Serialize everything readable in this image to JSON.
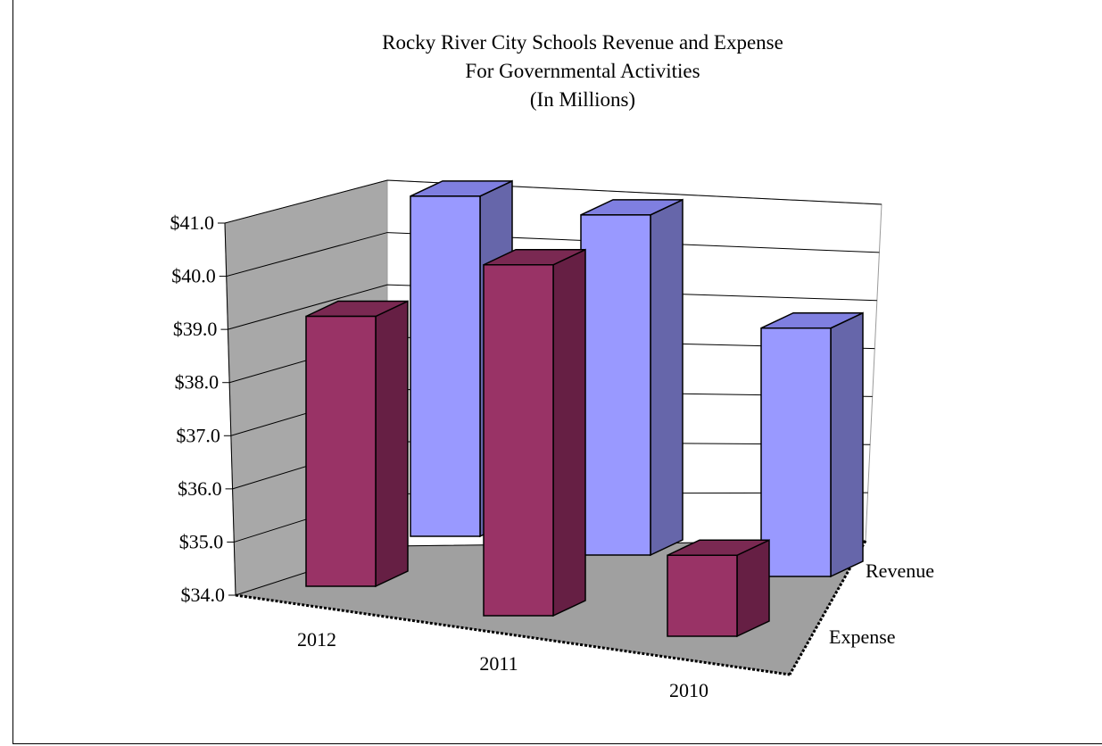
{
  "chart_data": {
    "type": "bar",
    "title_lines": [
      "Rocky River City Schools Revenue and Expense",
      "For Governmental Activities",
      "(In Millions)"
    ],
    "categories": [
      "2012",
      "2011",
      "2010"
    ],
    "series": [
      {
        "name": "Expense",
        "values": [
          39.0,
          40.5,
          35.5
        ]
      },
      {
        "name": "Revenue",
        "values": [
          40.3,
          40.3,
          38.6
        ]
      }
    ],
    "ylim": [
      34,
      41
    ],
    "y_ticks": [
      "$34.0",
      "$35.0",
      "$36.0",
      "$37.0",
      "$38.0",
      "$39.0",
      "$40.0",
      "$41.0"
    ],
    "grid": true,
    "three_d": true,
    "colors": {
      "Expense_front": "#993366",
      "Expense_top": "#7a2952",
      "Expense_side": "#661f44",
      "Revenue_front": "#9999ff",
      "Revenue_top": "#7f7fe0",
      "Revenue_side": "#6666aa",
      "floor": "#a0a0a0",
      "left_wall": "#a8a8a8",
      "back_wall": "#ffffff"
    }
  }
}
